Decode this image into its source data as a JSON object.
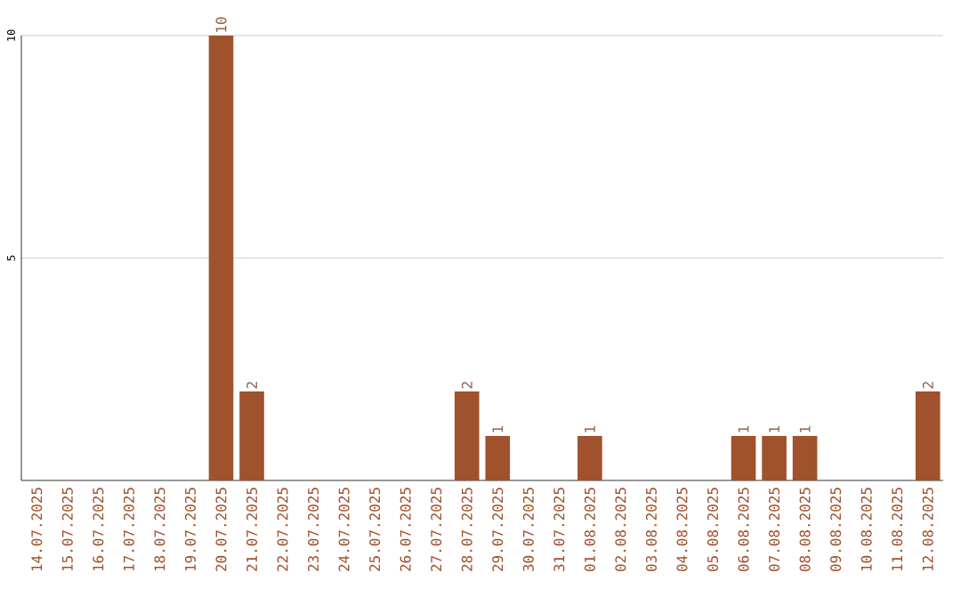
{
  "chart_data": {
    "type": "bar",
    "categories": [
      "14.07.2025",
      "15.07.2025",
      "16.07.2025",
      "17.07.2025",
      "18.07.2025",
      "19.07.2025",
      "20.07.2025",
      "21.07.2025",
      "22.07.2025",
      "23.07.2025",
      "24.07.2025",
      "25.07.2025",
      "26.07.2025",
      "27.07.2025",
      "28.07.2025",
      "29.07.2025",
      "30.07.2025",
      "31.07.2025",
      "01.08.2025",
      "02.08.2025",
      "03.08.2025",
      "04.08.2025",
      "05.08.2025",
      "06.08.2025",
      "07.08.2025",
      "08.08.2025",
      "09.08.2025",
      "10.08.2025",
      "11.08.2025",
      "12.08.2025"
    ],
    "values": [
      0,
      0,
      0,
      0,
      0,
      0,
      10,
      2,
      0,
      0,
      0,
      0,
      0,
      0,
      2,
      1,
      0,
      0,
      1,
      0,
      0,
      0,
      0,
      1,
      1,
      1,
      0,
      0,
      0,
      2
    ],
    "value_labels": [
      null,
      null,
      null,
      null,
      null,
      null,
      "10",
      "2",
      null,
      null,
      null,
      null,
      null,
      null,
      "2",
      "1",
      null,
      null,
      "1",
      null,
      null,
      null,
      null,
      "1",
      "1",
      "1",
      null,
      null,
      null,
      "2"
    ],
    "color": "#a0522d",
    "ylim": [
      0,
      10
    ],
    "yticks": [
      5,
      10
    ],
    "grid": "y"
  }
}
